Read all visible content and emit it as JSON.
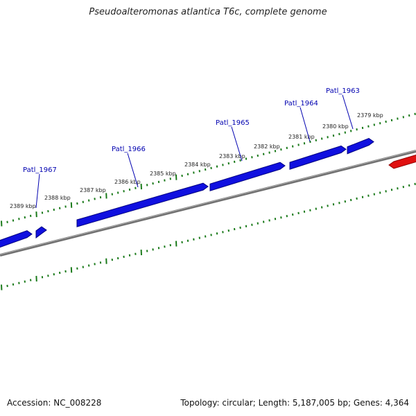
{
  "title": "Pseudoalteromonas atlantica T6c, complete genome",
  "footer": {
    "accession": "Accession: NC_008228",
    "summary": "Topology: circular; Length: 5,187,005 bp; Genes: 4,364"
  },
  "colors": {
    "gene_forward": "#1010e0",
    "gene_reverse": "#e01010",
    "backbone": "#808080",
    "ticks": "#1a7a1a",
    "gene_label": "#0000b0"
  },
  "tick_labels": [
    {
      "text": "2389 kbp",
      "kbp": 2389
    },
    {
      "text": "2388 kbp",
      "kbp": 2388
    },
    {
      "text": "2387 kbp",
      "kbp": 2387
    },
    {
      "text": "2386 kbp",
      "kbp": 2386
    },
    {
      "text": "2385 kbp",
      "kbp": 2385
    },
    {
      "text": "2384 kbp",
      "kbp": 2384
    },
    {
      "text": "2383 kbp",
      "kbp": 2383
    },
    {
      "text": "2382 kbp",
      "kbp": 2382
    },
    {
      "text": "2381 kbp",
      "kbp": 2381
    },
    {
      "text": "2380 kbp",
      "kbp": 2380
    },
    {
      "text": "2379 kbp",
      "kbp": 2379
    }
  ],
  "gene_labels": [
    {
      "text": "Patl_1967"
    },
    {
      "text": "Patl_1966"
    },
    {
      "text": "Patl_1965"
    },
    {
      "text": "Patl_1964"
    },
    {
      "text": "Patl_1963"
    }
  ]
}
